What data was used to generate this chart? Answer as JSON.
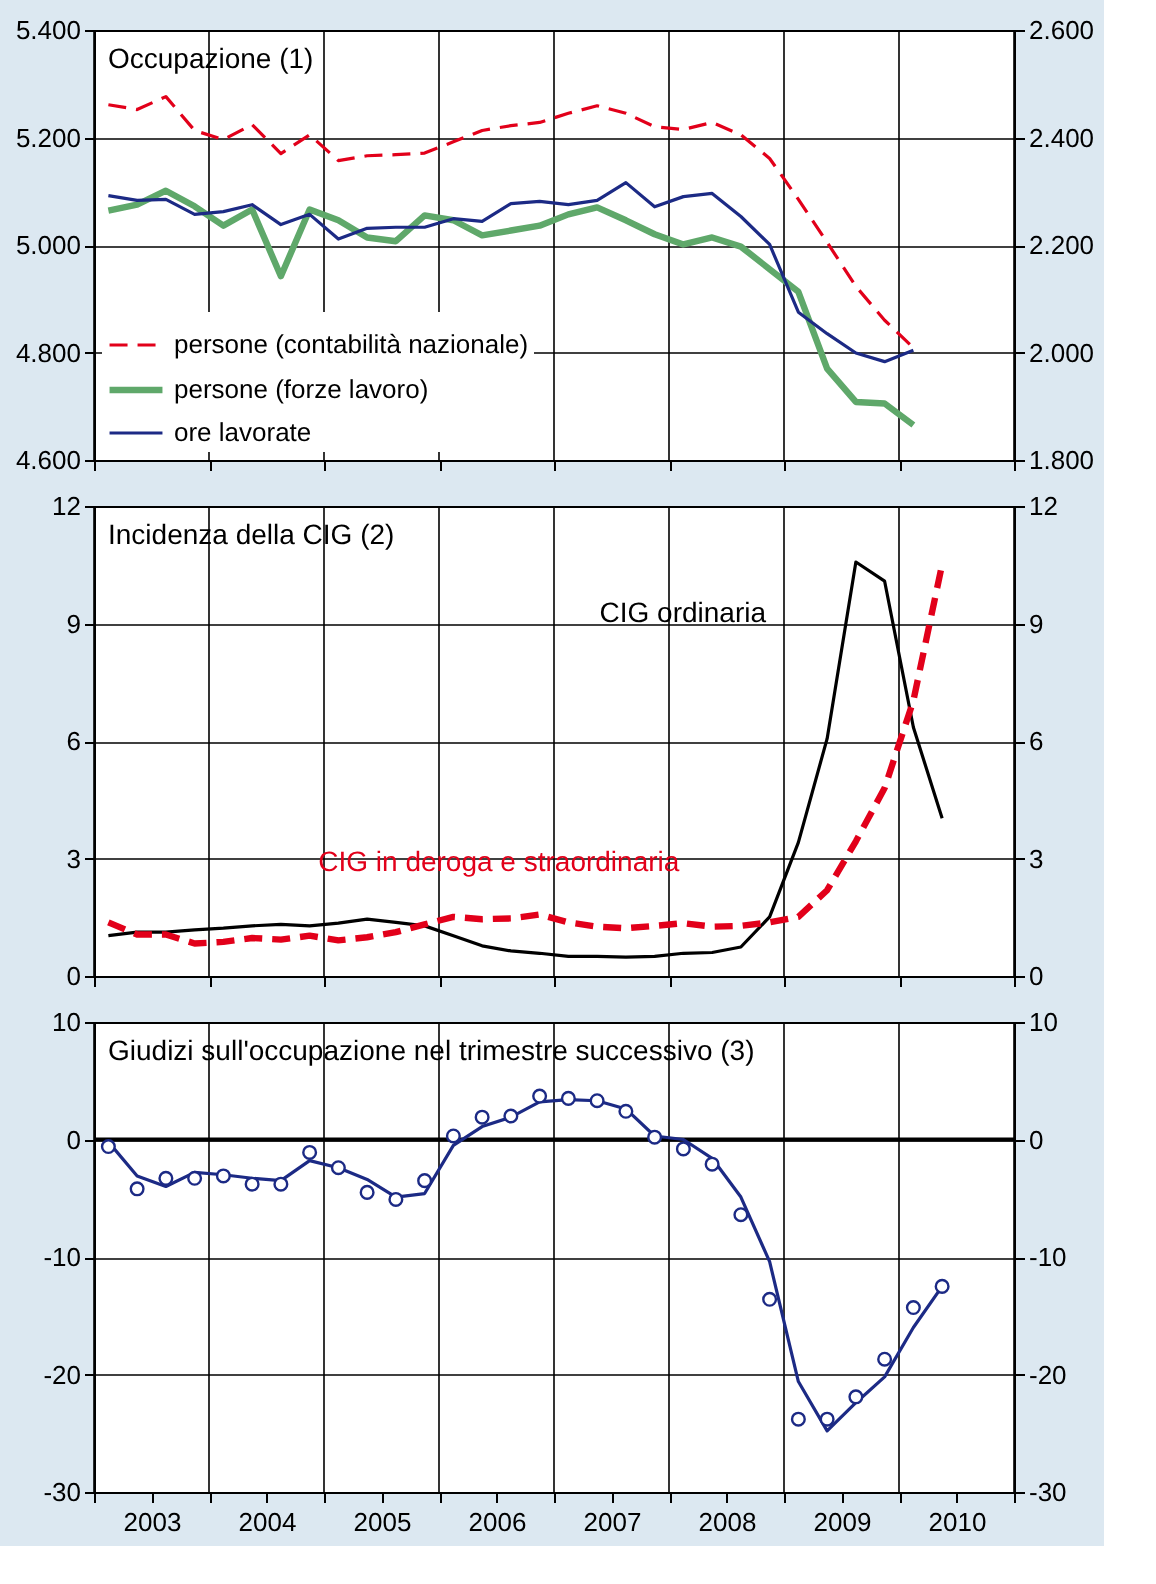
{
  "chart_data": [
    {
      "type": "line",
      "title": "Occupazione (1)",
      "legend": "bottom left",
      "grid": true,
      "tick_labels": "y",
      "xlim": [
        2003,
        2011
      ],
      "xticks": [
        {
          "value": 2003,
          "label": null
        },
        {
          "value": 2004,
          "label": null
        },
        {
          "value": 2005,
          "label": null
        },
        {
          "value": 2006,
          "label": null
        },
        {
          "value": 2007,
          "label": null
        },
        {
          "value": 2008,
          "label": null
        },
        {
          "value": 2009,
          "label": null
        },
        {
          "value": 2010,
          "label": null
        },
        {
          "value": 2011,
          "label": null
        }
      ],
      "ylim": [
        4600,
        5400
      ],
      "yticks": [
        {
          "value": 4600,
          "label": "4.600"
        },
        {
          "value": 4800,
          "label": "4.800"
        },
        {
          "value": 5000,
          "label": "5.000"
        },
        {
          "value": 5200,
          "label": "5.200"
        },
        {
          "value": 5400,
          "label": "5.400"
        }
      ],
      "y2lim": [
        1800,
        2600
      ],
      "y2ticks": [
        {
          "value": 1800,
          "label": "1.800"
        },
        {
          "value": 2000,
          "label": "2.000"
        },
        {
          "value": 2200,
          "label": "2.200"
        },
        {
          "value": 2400,
          "label": "2.400"
        },
        {
          "value": 2600,
          "label": "2.600"
        }
      ],
      "x": [
        2003.125,
        2003.375,
        2003.625,
        2003.875,
        2004.125,
        2004.375,
        2004.625,
        2004.875,
        2005.125,
        2005.375,
        2005.625,
        2005.875,
        2006.125,
        2006.375,
        2006.625,
        2006.875,
        2007.125,
        2007.375,
        2007.625,
        2007.875,
        2008.125,
        2008.375,
        2008.625,
        2008.875,
        2009.125,
        2009.375,
        2009.625,
        2009.875,
        2010.125
      ],
      "series": [
        {
          "name": "persone (contabilità nazionale)",
          "color": "#e2001a",
          "line_style": "dashed",
          "values": [
            5261,
            5252,
            5276,
            5213,
            5196,
            5224,
            5170,
            5205,
            5157,
            5166,
            5168,
            5171,
            5192,
            5213,
            5222,
            5228,
            5245,
            5259,
            5245,
            5220,
            5215,
            5228,
            5205,
            5161,
            5085,
            5005,
            4923,
            4860,
            4809
          ]
        },
        {
          "name": "persone (forze lavoro)",
          "color": "#5fa86a",
          "line_style": "solid",
          "values": [
            5064,
            5075,
            5101,
            5072,
            5036,
            5066,
            4942,
            5066,
            5046,
            5014,
            5007,
            5055,
            5046,
            5018,
            5027,
            5036,
            5057,
            5070,
            5046,
            5020,
            5001,
            5014,
            4997,
            4955,
            4913,
            4770,
            4708,
            4705,
            4665
          ]
        },
        {
          "name": "ore lavorate",
          "color": "#1c2a85",
          "line_style": "solid",
          "axis": "y2",
          "values": [
            2292,
            2283,
            2285,
            2257,
            2262,
            2275,
            2238,
            2257,
            2211,
            2231,
            2233,
            2233,
            2249,
            2244,
            2277,
            2281,
            2275,
            2283,
            2316,
            2271,
            2290,
            2296,
            2253,
            2201,
            2075,
            2035,
            1999,
            1983,
            2004
          ]
        }
      ]
    },
    {
      "type": "line",
      "title": "Incidenza della CIG (2)",
      "legend": false,
      "grid": true,
      "tick_labels": "y",
      "xlim": [
        2003,
        2011
      ],
      "xticks": [
        {
          "value": 2003,
          "label": null
        },
        {
          "value": 2004,
          "label": null
        },
        {
          "value": 2005,
          "label": null
        },
        {
          "value": 2006,
          "label": null
        },
        {
          "value": 2007,
          "label": null
        },
        {
          "value": 2008,
          "label": null
        },
        {
          "value": 2009,
          "label": null
        },
        {
          "value": 2010,
          "label": null
        },
        {
          "value": 2011,
          "label": null
        }
      ],
      "ylim": [
        0,
        12
      ],
      "yticks": [
        0,
        3,
        6,
        9,
        12
      ],
      "y2lim": [
        0,
        12
      ],
      "y2ticks": [
        0,
        3,
        6,
        9,
        12
      ],
      "x": [
        2003.125,
        2003.375,
        2003.625,
        2003.875,
        2004.125,
        2004.375,
        2004.625,
        2004.875,
        2005.125,
        2005.375,
        2005.625,
        2005.875,
        2006.125,
        2006.375,
        2006.625,
        2006.875,
        2007.125,
        2007.375,
        2007.625,
        2007.875,
        2008.125,
        2008.375,
        2008.625,
        2008.875,
        2009.125,
        2009.375,
        2009.625,
        2009.875,
        2010.125,
        2010.375
      ],
      "series": [
        {
          "name": "CIG ordinaria",
          "color": "#000000",
          "line_style": "solid",
          "values": [
            1.03,
            1.12,
            1.12,
            1.18,
            1.22,
            1.28,
            1.32,
            1.28,
            1.35,
            1.45,
            1.37,
            1.28,
            1.03,
            0.77,
            0.64,
            0.58,
            0.5,
            0.5,
            0.48,
            0.5,
            0.58,
            0.6,
            0.74,
            1.51,
            3.41,
            6.06,
            10.57,
            10.08,
            6.35,
            4.03
          ]
        },
        {
          "name": "CIG in deroga e straordinaria",
          "color": "#e2001a",
          "line_style": "dashed",
          "values": [
            1.37,
            1.06,
            1.06,
            0.83,
            0.87,
            0.97,
            0.93,
            1.03,
            0.91,
            0.99,
            1.12,
            1.32,
            1.51,
            1.45,
            1.47,
            1.57,
            1.37,
            1.26,
            1.22,
            1.28,
            1.35,
            1.26,
            1.28,
            1.37,
            1.51,
            2.19,
            3.44,
            4.8,
            7.03,
            10.51
          ]
        }
      ]
    },
    {
      "type": "line",
      "title": "Giudizi sull'occupazione nel trimestre successivo (3)",
      "legend": false,
      "grid": true,
      "xlim": [
        2003,
        2011
      ],
      "xticks": [
        {
          "value": 2003,
          "label": null
        },
        {
          "value": 2003.5,
          "label": "2003"
        },
        {
          "value": 2004,
          "label": null
        },
        {
          "value": 2004.5,
          "label": "2004"
        },
        {
          "value": 2005,
          "label": null
        },
        {
          "value": 2005.5,
          "label": "2005"
        },
        {
          "value": 2006,
          "label": null
        },
        {
          "value": 2006.5,
          "label": "2006"
        },
        {
          "value": 2007,
          "label": null
        },
        {
          "value": 2007.5,
          "label": "2007"
        },
        {
          "value": 2008,
          "label": null
        },
        {
          "value": 2008.5,
          "label": "2008"
        },
        {
          "value": 2009,
          "label": null
        },
        {
          "value": 2009.5,
          "label": "2009"
        },
        {
          "value": 2010,
          "label": null
        },
        {
          "value": 2010.5,
          "label": "2010"
        },
        {
          "value": 2011,
          "label": null
        }
      ],
      "ylim": [
        -30,
        10
      ],
      "yticks": [
        -30,
        -20,
        -10,
        0,
        10
      ],
      "y2lim": [
        -30,
        10
      ],
      "y2ticks": [
        -30,
        -20,
        -10,
        0,
        10
      ],
      "ref_lines": [
        {
          "axis": "y",
          "value": 0,
          "color": "#000000"
        }
      ],
      "x": [
        2003.125,
        2003.375,
        2003.625,
        2003.875,
        2004.125,
        2004.375,
        2004.625,
        2004.875,
        2005.125,
        2005.375,
        2005.625,
        2005.875,
        2006.125,
        2006.375,
        2006.625,
        2006.875,
        2007.125,
        2007.375,
        2007.625,
        2007.875,
        2008.125,
        2008.375,
        2008.625,
        2008.875,
        2009.125,
        2009.375,
        2009.625,
        2009.875,
        2010.125,
        2010.375
      ],
      "series": [
        {
          "type": "line",
          "color": "#1c2a85",
          "line_style": "solid",
          "values": [
            -0.2,
            -3.1,
            -4.0,
            -2.8,
            -3.0,
            -3.3,
            -3.5,
            -1.8,
            -2.4,
            -3.4,
            -4.9,
            -4.6,
            -0.5,
            1.1,
            1.9,
            3.2,
            3.4,
            3.3,
            2.6,
            0.3,
            0.0,
            -1.6,
            -4.9,
            -10.4,
            -20.6,
            -24.8,
            -22.4,
            -20.2,
            -16.0,
            -12.5
          ]
        },
        {
          "type": "scatter",
          "color": "#1c2a85",
          "marker": "circle",
          "values": [
            -0.6,
            -4.2,
            -3.3,
            -3.3,
            -3.1,
            -3.8,
            -3.8,
            -1.1,
            -2.4,
            -4.5,
            -5.1,
            -3.5,
            0.3,
            1.9,
            2.0,
            3.7,
            3.5,
            3.3,
            2.4,
            0.2,
            -0.8,
            -2.1,
            -6.4,
            -13.6,
            -23.8,
            -23.8,
            -21.9,
            -18.7,
            -14.3,
            -12.5
          ]
        }
      ]
    }
  ]
}
